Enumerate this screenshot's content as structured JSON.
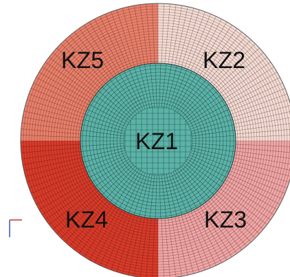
{
  "zones": [
    {
      "label": "KZ1"
    },
    {
      "label": "KZ2"
    },
    {
      "label": "KZ3"
    },
    {
      "label": "KZ4"
    },
    {
      "label": "KZ5"
    }
  ]
}
